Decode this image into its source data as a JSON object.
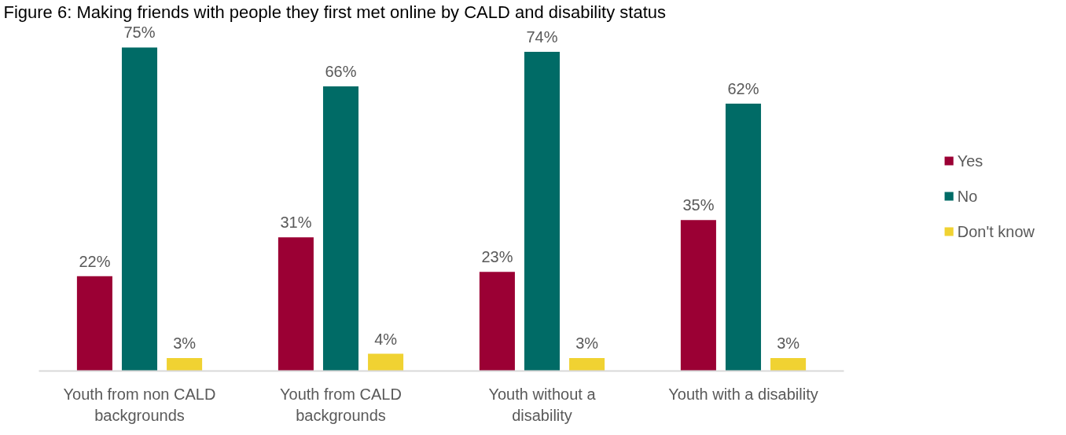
{
  "chart_data": {
    "type": "bar",
    "title": "Figure 6: Making friends with people they first met online by CALD and disability status",
    "categories": [
      "Youth from non CALD backgrounds",
      "Youth from CALD backgrounds",
      "Youth without a disability",
      "Youth with a disability"
    ],
    "series": [
      {
        "name": "Yes",
        "color": "#9b0034",
        "values": [
          22,
          31,
          23,
          35
        ],
        "value_labels": [
          "22%",
          "31%",
          "23%",
          "35%"
        ]
      },
      {
        "name": "No",
        "color": "#006b66",
        "values": [
          75,
          66,
          74,
          62
        ],
        "value_labels": [
          "75%",
          "66%",
          "74%",
          "62%"
        ]
      },
      {
        "name": "Don't know",
        "color": "#f0d232",
        "values": [
          3,
          4,
          3,
          3
        ],
        "value_labels": [
          "3%",
          "4%",
          "3%",
          "3%"
        ]
      }
    ],
    "legend": "right",
    "grid": false,
    "tick_labels": "x"
  }
}
